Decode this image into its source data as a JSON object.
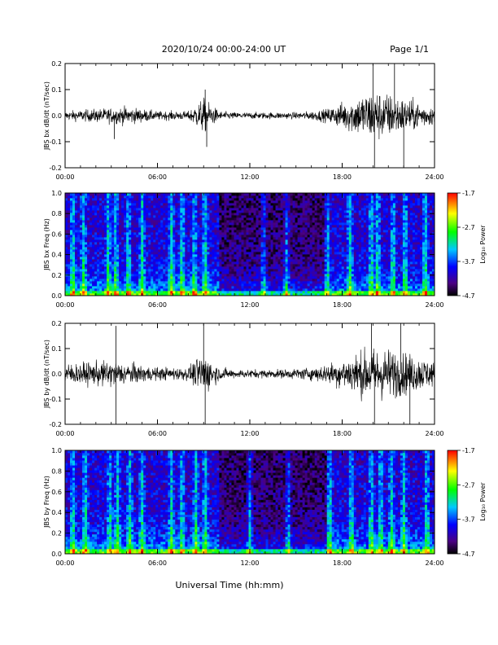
{
  "header": {
    "date_range": "2020/10/24  00:00-24:00 UT",
    "page": "Page 1/1"
  },
  "xlabel": "Universal Time (hh:mm)",
  "chart_data": [
    {
      "type": "line",
      "ylabel": "JBS bx dB/dt (nT/sec)",
      "xlim": [
        0,
        24
      ],
      "ylim": [
        -0.2,
        0.2
      ],
      "x_ticks": [
        "00:00",
        "06:00",
        "12:00",
        "18:00",
        "24:00"
      ],
      "y_ticks": [
        "0.2",
        "0.1",
        "0.0",
        "-0.1",
        "-0.2"
      ],
      "envelope_hours": [
        0,
        1,
        2,
        3,
        4,
        5,
        6,
        7,
        8,
        9,
        10,
        11,
        12,
        13,
        14,
        15,
        16,
        17,
        18,
        19,
        20,
        21,
        22,
        23,
        24
      ],
      "envelope_amplitude": [
        0.02,
        0.025,
        0.03,
        0.035,
        0.04,
        0.03,
        0.02,
        0.02,
        0.02,
        0.08,
        0.02,
        0.015,
        0.015,
        0.015,
        0.015,
        0.015,
        0.02,
        0.03,
        0.06,
        0.09,
        0.12,
        0.1,
        0.08,
        0.06,
        0.04
      ],
      "spikes": [
        [
          9.1,
          0.1
        ],
        [
          9.2,
          -0.12
        ],
        [
          3.2,
          -0.09
        ],
        [
          20.0,
          0.2
        ],
        [
          20.1,
          -0.2
        ],
        [
          21.4,
          0.2
        ],
        [
          22.0,
          -0.2
        ]
      ]
    },
    {
      "type": "heatmap",
      "ylabel": "JBS bx Freq (Hz)",
      "xlim": [
        0,
        24
      ],
      "ylim": [
        0,
        1.0
      ],
      "x_ticks": [
        "00:00",
        "06:00",
        "12:00",
        "18:00",
        "24:00"
      ],
      "y_ticks": [
        "1.0",
        "0.8",
        "0.6",
        "0.4",
        "0.2",
        "0.0"
      ],
      "colorbar_label": "Log₁₀ Power",
      "colorbar_ticks": [
        "-1.7",
        "-2.7",
        "-3.7",
        "-4.7"
      ],
      "power_range": [
        -4.7,
        -1.7
      ],
      "bright_bands_hours": [
        0.5,
        1.2,
        2.8,
        3.3,
        4.1,
        5.0,
        6.9,
        7.6,
        8.4,
        9.1,
        12.9,
        14.4,
        17.0,
        18.5,
        19.9,
        20.3,
        21.3,
        22.1,
        23.4
      ]
    },
    {
      "type": "line",
      "ylabel": "JBS by dB/dt (nT/sec)",
      "xlim": [
        0,
        24
      ],
      "ylim": [
        -0.2,
        0.2
      ],
      "x_ticks": [
        "00:00",
        "06:00",
        "12:00",
        "18:00",
        "24:00"
      ],
      "y_ticks": [
        "0.2",
        "0.1",
        "0.0",
        "-0.1",
        "-0.2"
      ],
      "envelope_hours": [
        0,
        1,
        2,
        3,
        4,
        5,
        6,
        7,
        8,
        9,
        10,
        11,
        12,
        13,
        14,
        15,
        16,
        17,
        18,
        19,
        20,
        21,
        22,
        23,
        24
      ],
      "envelope_amplitude": [
        0.05,
        0.05,
        0.055,
        0.06,
        0.05,
        0.04,
        0.03,
        0.03,
        0.03,
        0.1,
        0.03,
        0.02,
        0.02,
        0.02,
        0.02,
        0.025,
        0.03,
        0.045,
        0.07,
        0.1,
        0.12,
        0.12,
        0.1,
        0.08,
        0.06
      ],
      "spikes": [
        [
          3.3,
          0.19
        ],
        [
          3.3,
          -0.2
        ],
        [
          9.0,
          0.2
        ],
        [
          9.1,
          -0.2
        ],
        [
          19.9,
          0.2
        ],
        [
          20.1,
          -0.2
        ],
        [
          21.8,
          0.2
        ],
        [
          22.4,
          -0.2
        ]
      ]
    },
    {
      "type": "heatmap",
      "ylabel": "JBS by Freq (Hz)",
      "xlim": [
        0,
        24
      ],
      "ylim": [
        0,
        1.0
      ],
      "x_ticks": [
        "00:00",
        "06:00",
        "12:00",
        "18:00",
        "24:00"
      ],
      "y_ticks": [
        "1.0",
        "0.8",
        "0.6",
        "0.4",
        "0.2",
        "0.0"
      ],
      "colorbar_label": "Log₁₀ Power",
      "colorbar_ticks": [
        "-1.7",
        "-2.7",
        "-3.7",
        "-4.7"
      ],
      "power_range": [
        -4.7,
        -1.7
      ],
      "bright_bands_hours": [
        0.5,
        1.3,
        2.9,
        3.4,
        4.2,
        5.0,
        6.9,
        7.6,
        8.5,
        9.1,
        12.0,
        14.5,
        17.2,
        18.6,
        19.9,
        20.5,
        21.2,
        22.0,
        23.5
      ]
    }
  ]
}
